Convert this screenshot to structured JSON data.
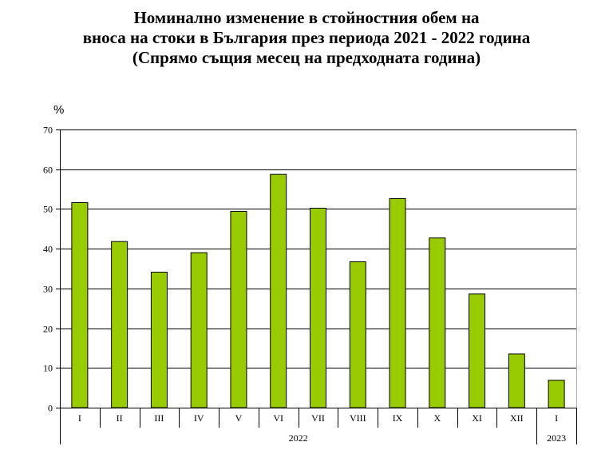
{
  "chart_data": {
    "type": "bar",
    "title_lines": [
      "Номинално изменение в стойностния обем на",
      "вноса на стоки в България през периода 2021 - 2022 година",
      "(Спрямо същия месец на предходната година)"
    ],
    "ylabel": "%",
    "categories": [
      "I",
      "II",
      "III",
      "IV",
      "V",
      "VI",
      "VII",
      "VIII",
      "IX",
      "X",
      "XI",
      "XII",
      "I"
    ],
    "values": [
      51.6,
      41.8,
      34.1,
      39.0,
      49.4,
      58.7,
      50.2,
      36.7,
      52.6,
      42.7,
      28.6,
      13.5,
      6.9
    ],
    "groups": [
      {
        "label": "2022",
        "count": 12
      },
      {
        "label": "2023",
        "count": 1
      }
    ],
    "ylim": [
      0,
      70
    ],
    "yticks": [
      0,
      10,
      20,
      30,
      40,
      50,
      60,
      70
    ],
    "grid": true,
    "colors": {
      "bar": "#99CC00",
      "bar_stroke": "#000000",
      "grid": "#000000"
    }
  }
}
